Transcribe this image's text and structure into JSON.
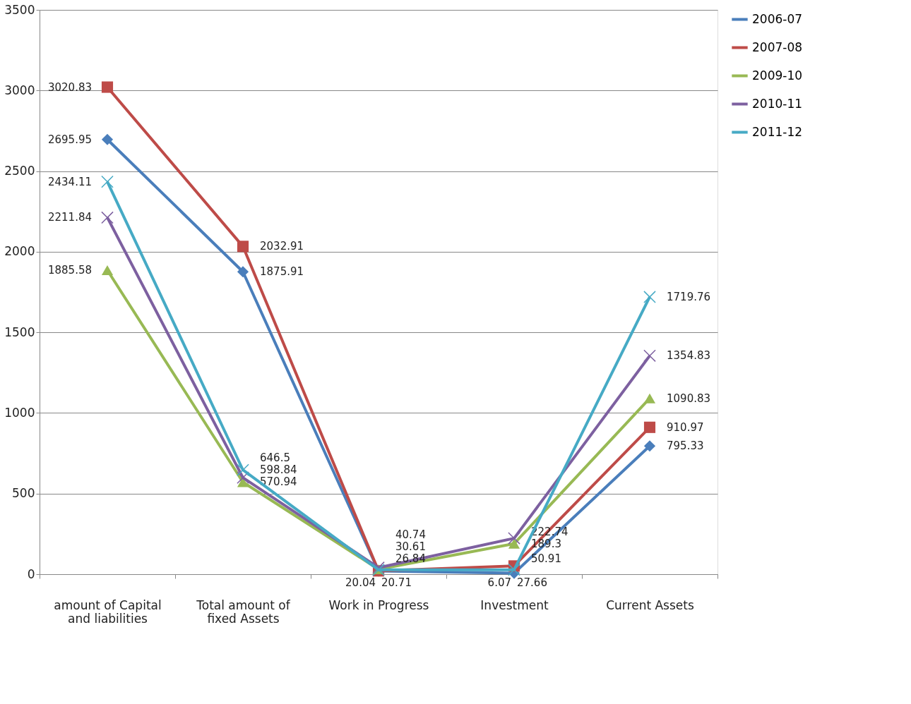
{
  "chart_data": {
    "type": "line",
    "categories": [
      "amount of Capital and liabilities",
      "Total amount of fixed Assets",
      "Work in Progress",
      "Investment",
      "Current Assets"
    ],
    "series": [
      {
        "name": "2006-07",
        "color": "#4a7ebb",
        "marker": "diamond",
        "values": [
          2695.95,
          1875.91,
          20.04,
          6.07,
          795.33
        ],
        "value_labels": [
          "2695.95",
          "1875.91",
          "20.04",
          "6.07",
          "795.33"
        ]
      },
      {
        "name": "2007-08",
        "color": "#be4b48",
        "marker": "square",
        "values": [
          3020.83,
          2032.91,
          20.71,
          50.91,
          910.97
        ],
        "value_labels": [
          "3020.83",
          "2032.91",
          "20.71",
          "50.91",
          "910.97"
        ]
      },
      {
        "name": "2009-10",
        "color": "#98b954",
        "marker": "triangle",
        "values": [
          1885.58,
          570.94,
          30.61,
          189.3,
          1090.83
        ],
        "value_labels": [
          "1885.58",
          "570.94",
          "30.61",
          "189.3",
          "1090.83"
        ]
      },
      {
        "name": "2010-11",
        "color": "#7d60a0",
        "marker": "cross",
        "values": [
          2211.84,
          598.84,
          40.74,
          222.74,
          1354.83
        ],
        "value_labels": [
          "2211.84",
          "598.84",
          "40.74",
          "222.74",
          "1354.83"
        ]
      },
      {
        "name": "2011-12",
        "color": "#46aac5",
        "marker": "cross",
        "values": [
          2434.11,
          646.5,
          26.84,
          27.66,
          1719.76
        ],
        "value_labels": [
          "2434.11",
          "646.5",
          "26.84",
          "27.66",
          "1719.76"
        ]
      }
    ],
    "ylim": [
      0,
      3500
    ],
    "yticks": [
      0,
      500,
      1000,
      1500,
      2000,
      2500,
      3000,
      3500
    ],
    "grid": "y",
    "legend": "right",
    "line_style": "solid"
  }
}
